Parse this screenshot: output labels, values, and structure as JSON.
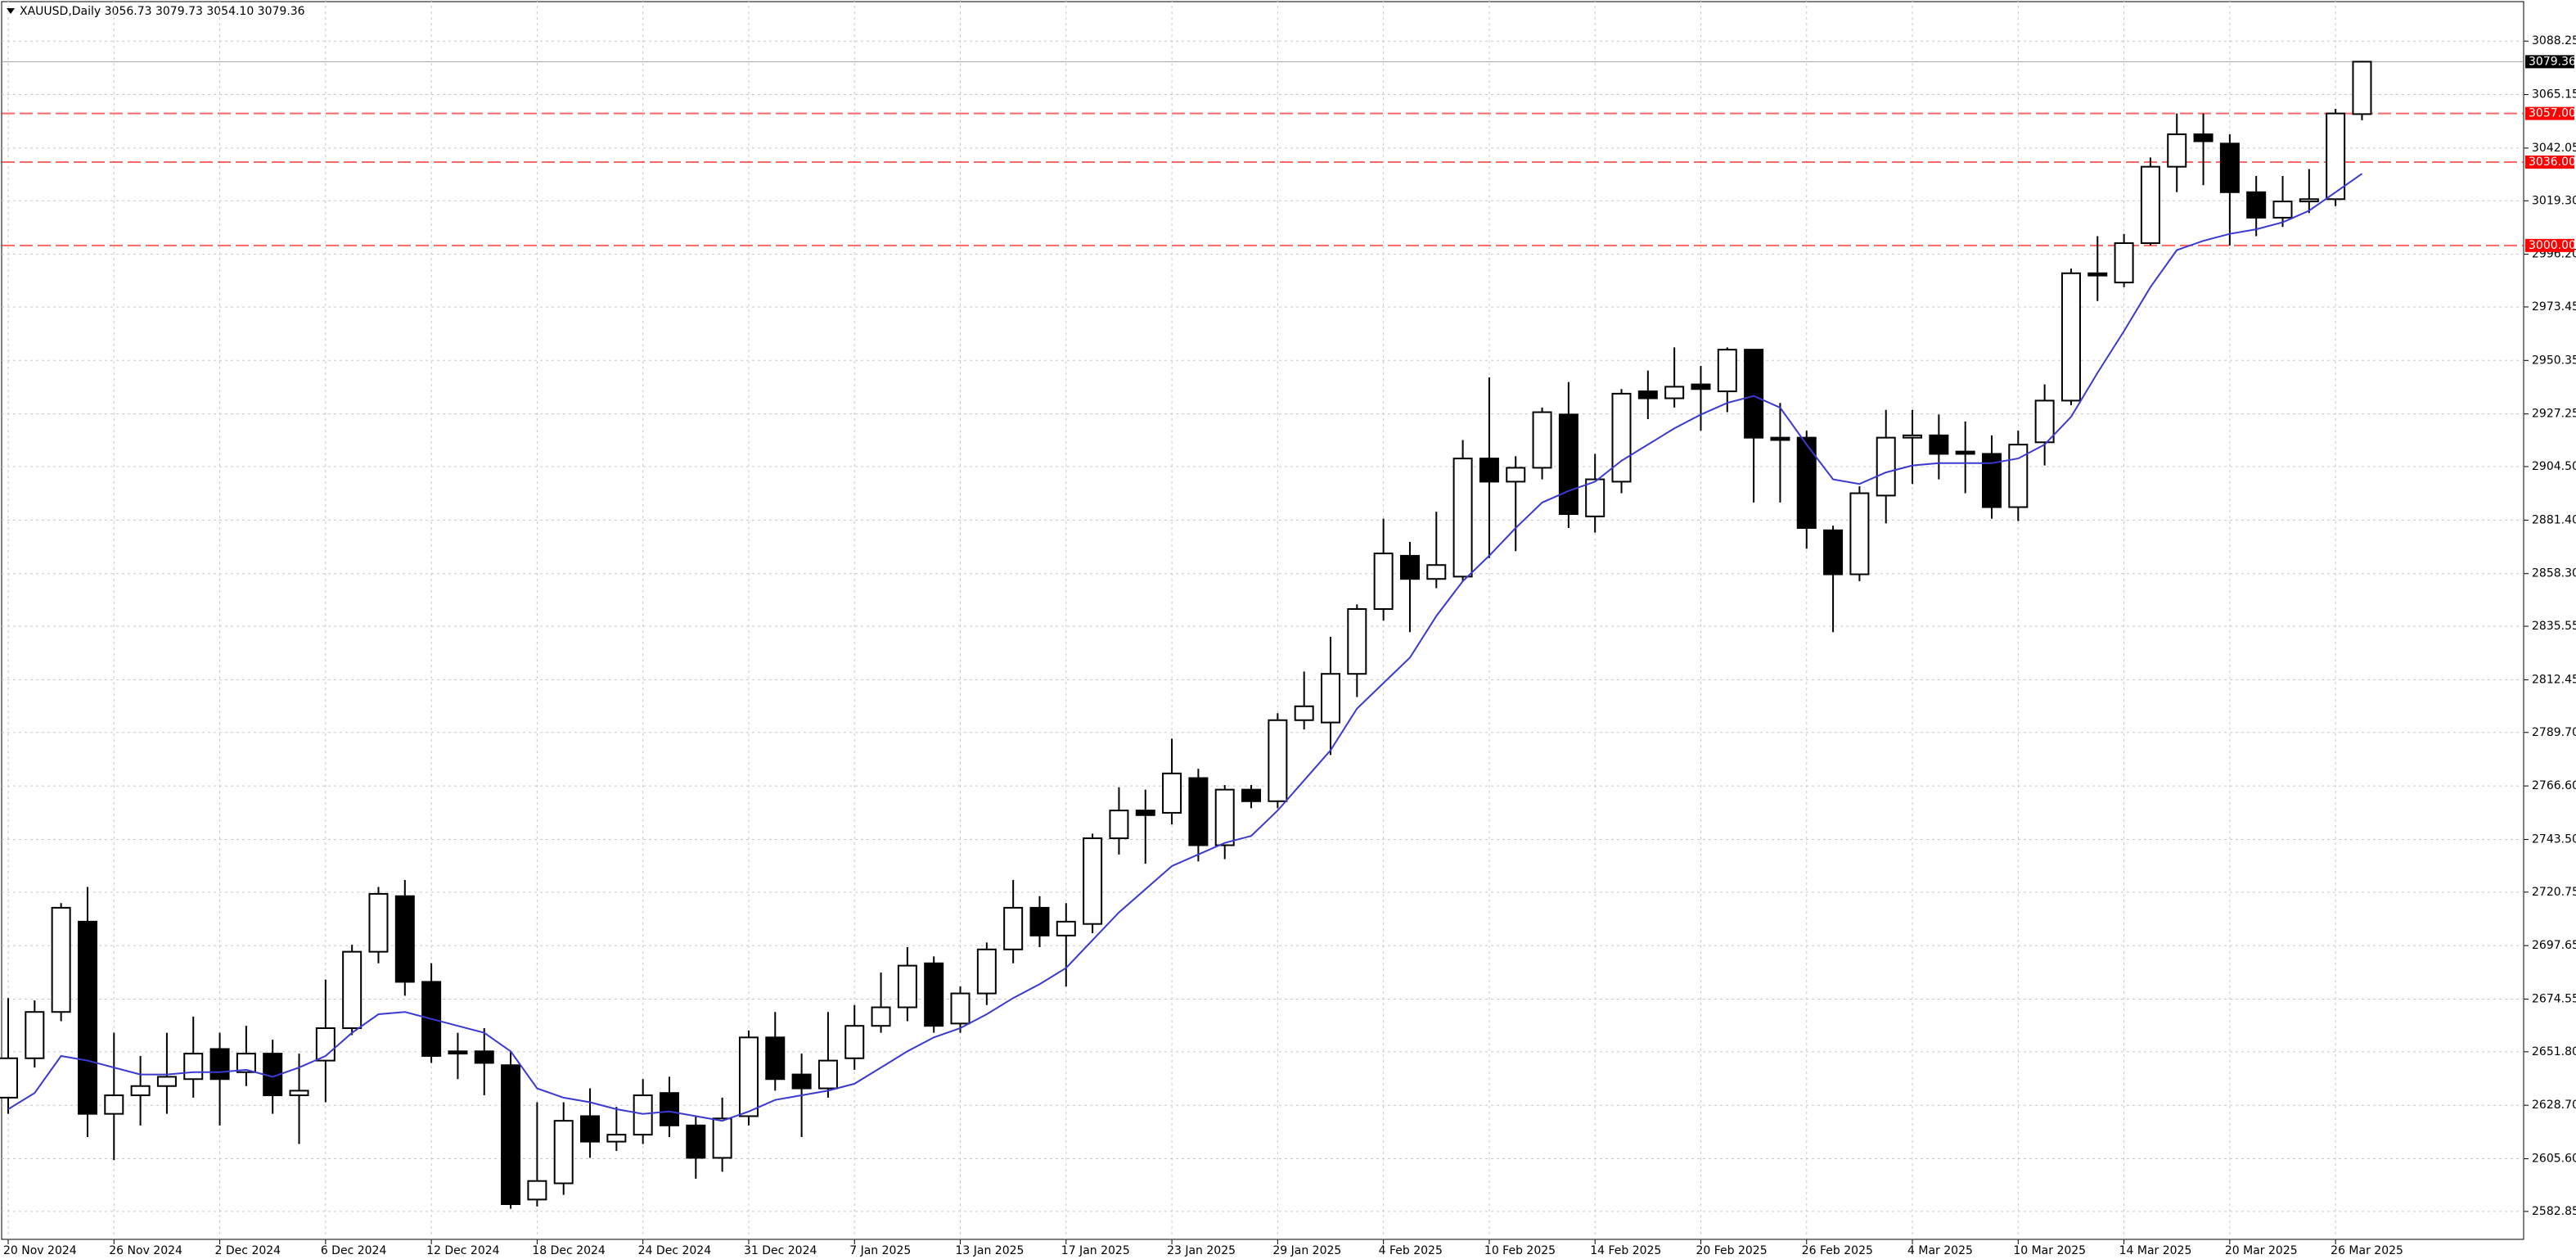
{
  "chart_data": {
    "type": "candlestick",
    "title": "XAUUSD,Daily  3056.73 3079.73 3054.10 3079.36",
    "categories": [
      "20 Nov 2024",
      null,
      null,
      null,
      "26 Nov 2024",
      null,
      null,
      null,
      "2 Dec 2024",
      null,
      null,
      null,
      "6 Dec 2024",
      null,
      null,
      null,
      "12 Dec 2024",
      null,
      null,
      null,
      "18 Dec 2024",
      null,
      null,
      null,
      "24 Dec 2024",
      null,
      null,
      null,
      "31 Dec 2024",
      null,
      null,
      null,
      "7 Jan 2025",
      null,
      null,
      null,
      "13 Jan 2025",
      null,
      null,
      null,
      "17 Jan 2025",
      null,
      null,
      null,
      "23 Jan 2025",
      null,
      null,
      null,
      "29 Jan 2025",
      null,
      null,
      null,
      "4 Feb 2025",
      null,
      null,
      null,
      "10 Feb 2025",
      null,
      null,
      null,
      "14 Feb 2025",
      null,
      null,
      null,
      "20 Feb 2025",
      null,
      null,
      null,
      "26 Feb 2025",
      null,
      null,
      null,
      "4 Mar 2025",
      null,
      null,
      null,
      "10 Mar 2025",
      null,
      null,
      null,
      "14 Mar 2025",
      null,
      null,
      null,
      "20 Mar 2025",
      null,
      null,
      null,
      "26 Mar 2025",
      null
    ],
    "open": [
      2632,
      2649,
      2669,
      2708,
      2625,
      2633,
      2637,
      2640,
      2653,
      2643,
      2651,
      2633,
      2648,
      2662,
      2695,
      2719,
      2682,
      2652,
      2652,
      2646,
      2588,
      2595,
      2624,
      2613,
      2616,
      2634,
      2620,
      2606,
      2624,
      2658,
      2642,
      2636,
      2649,
      2663,
      2671,
      2690,
      2664,
      2677,
      2696,
      2714,
      2702,
      2707,
      2744,
      2756,
      2755,
      2770,
      2741,
      2765,
      2760,
      2795,
      2794,
      2815,
      2843,
      2866,
      2856,
      2857,
      2908,
      2898,
      2904,
      2927,
      2883,
      2898,
      2937,
      2934,
      2940,
      2937,
      2955,
      2917,
      2917,
      2877,
      2858,
      2892,
      2917,
      2918,
      2911,
      2910,
      2887,
      2915,
      2933,
      2988,
      2984,
      3001,
      3034,
      3048,
      3044,
      3023,
      3012,
      3019,
      3020,
      3056.73
    ],
    "high": [
      2675,
      2674,
      2716,
      2723,
      2660,
      2650,
      2660,
      2667,
      2660,
      2663,
      2657,
      2651,
      2683,
      2698,
      2723,
      2726,
      2690,
      2660,
      2662,
      2652,
      2630,
      2630,
      2636,
      2628,
      2640,
      2641,
      2624,
      2632,
      2661,
      2669,
      2651,
      2669,
      2672,
      2686,
      2697,
      2693,
      2680,
      2699,
      2726,
      2719,
      2716,
      2746,
      2766,
      2765,
      2787,
      2774,
      2767,
      2767,
      2798,
      2816,
      2831,
      2845,
      2882,
      2872,
      2885,
      2916,
      2943,
      2909,
      2930,
      2941,
      2910,
      2938,
      2946,
      2956,
      2948,
      2956,
      2955,
      2932,
      2920,
      2879,
      2896,
      2929,
      2929,
      2927,
      2924,
      2918,
      2920,
      2940,
      2990,
      3004,
      3005,
      3038,
      3057,
      3057,
      3048,
      3030,
      3030,
      3033,
      3059,
      3079.73
    ],
    "low": [
      2625,
      2645,
      2665,
      2615,
      2605,
      2620,
      2625,
      2632,
      2620,
      2637,
      2625,
      2612,
      2630,
      2659,
      2690,
      2676,
      2647,
      2640,
      2633,
      2584,
      2585,
      2590,
      2606,
      2609,
      2612,
      2615,
      2597,
      2600,
      2620,
      2635,
      2615,
      2632,
      2644,
      2660,
      2665,
      2660,
      2660,
      2672,
      2690,
      2697,
      2680,
      2703,
      2737,
      2733,
      2750,
      2734,
      2735,
      2757,
      2757,
      2791,
      2780,
      2805,
      2838,
      2833,
      2852,
      2855,
      2865,
      2868,
      2899,
      2878,
      2876,
      2893,
      2925,
      2930,
      2920,
      2928,
      2889,
      2889,
      2869,
      2833,
      2855,
      2880,
      2897,
      2899,
      2893,
      2882,
      2881,
      2905,
      2931,
      2976,
      2982,
      3000,
      3023,
      3026,
      3000,
      3004,
      3008,
      3014,
      3017,
      3054.1
    ],
    "close": [
      2649,
      2669,
      2714,
      2625,
      2633,
      2637,
      2641,
      2651,
      2640,
      2651,
      2633,
      2635,
      2662,
      2695,
      2720,
      2682,
      2650,
      2651,
      2647,
      2586,
      2596,
      2622,
      2613,
      2616,
      2633,
      2620,
      2606,
      2623,
      2658,
      2640,
      2636,
      2648,
      2663,
      2671,
      2689,
      2663,
      2677,
      2696,
      2714,
      2702,
      2708,
      2744,
      2756,
      2754,
      2772,
      2741,
      2765,
      2760,
      2795,
      2801,
      2815,
      2843,
      2867,
      2856,
      2862,
      2908,
      2898,
      2904,
      2928,
      2884,
      2899,
      2936,
      2934,
      2939,
      2938,
      2955,
      2917,
      2916,
      2878,
      2858,
      2893,
      2917,
      2918,
      2910,
      2910,
      2887,
      2914,
      2933,
      2988,
      2987,
      3001,
      3034,
      3048,
      3045,
      3023,
      3012,
      3019,
      3020,
      3057,
      3079.36
    ],
    "ma": {
      "color": "#3a3ad0",
      "values": [
        2627,
        2634,
        2650,
        2648,
        2645,
        2642,
        2642,
        2643,
        2643,
        2644,
        2641,
        2645,
        2650,
        2660,
        2668,
        2669,
        2666,
        2663,
        2660,
        2652,
        2636,
        2632,
        2630,
        2627,
        2625,
        2626,
        2624,
        2622,
        2626,
        2631,
        2633,
        2635,
        2638,
        2645,
        2652,
        2658,
        2662,
        2668,
        2675,
        2681,
        2688,
        2700,
        2712,
        2722,
        2732,
        2737,
        2742,
        2745,
        2756,
        2769,
        2782,
        2800,
        2811,
        2822,
        2840,
        2855,
        2866,
        2878,
        2889,
        2894,
        2898,
        2907,
        2914,
        2921,
        2927,
        2932,
        2935,
        2930,
        2914,
        2899,
        2897,
        2902,
        2905,
        2906,
        2906,
        2906,
        2908,
        2914,
        2926,
        2945,
        2963,
        2982,
        2998,
        3002,
        3005,
        3007,
        3010,
        3015,
        3023,
        3031
      ]
    },
    "up_color": "#ffffff",
    "down_color": "#000000",
    "ylim": [
      2570.8,
      3106.0
    ],
    "yticks": [
      3088.25,
      3065.15,
      3042.05,
      {
        "value": 3019.3,
        "label": "3019.30"
      },
      {
        "value": 2996.2,
        "label": "2996.20"
      },
      2973.45,
      2950.35,
      2927.25,
      {
        "value": 2904.5,
        "label": "2904.50"
      },
      {
        "value": 2881.4,
        "label": "2881.40"
      },
      {
        "value": 2858.3,
        "label": "2858.30"
      },
      2835.55,
      2812.45,
      {
        "value": 2789.7,
        "label": "2789.70"
      },
      {
        "value": 2766.6,
        "label": "2766.60"
      },
      {
        "value": 2743.5,
        "label": "2743.50"
      },
      2720.75,
      2697.65,
      2674.55,
      {
        "value": 2651.8,
        "label": "2651.80"
      },
      {
        "value": 2628.7,
        "label": "2628.70"
      },
      {
        "value": 2605.6,
        "label": "2605.60"
      },
      2582.85
    ],
    "grid": true,
    "hlines": [
      {
        "value": 3057,
        "label": "3057.00",
        "color": "#ff0000"
      },
      {
        "value": 3036,
        "label": "3036.00",
        "color": "#ff0000"
      },
      {
        "value": 3000,
        "label": "3000.00",
        "color": "#ff0000"
      }
    ],
    "last_price": 3079.36
  }
}
